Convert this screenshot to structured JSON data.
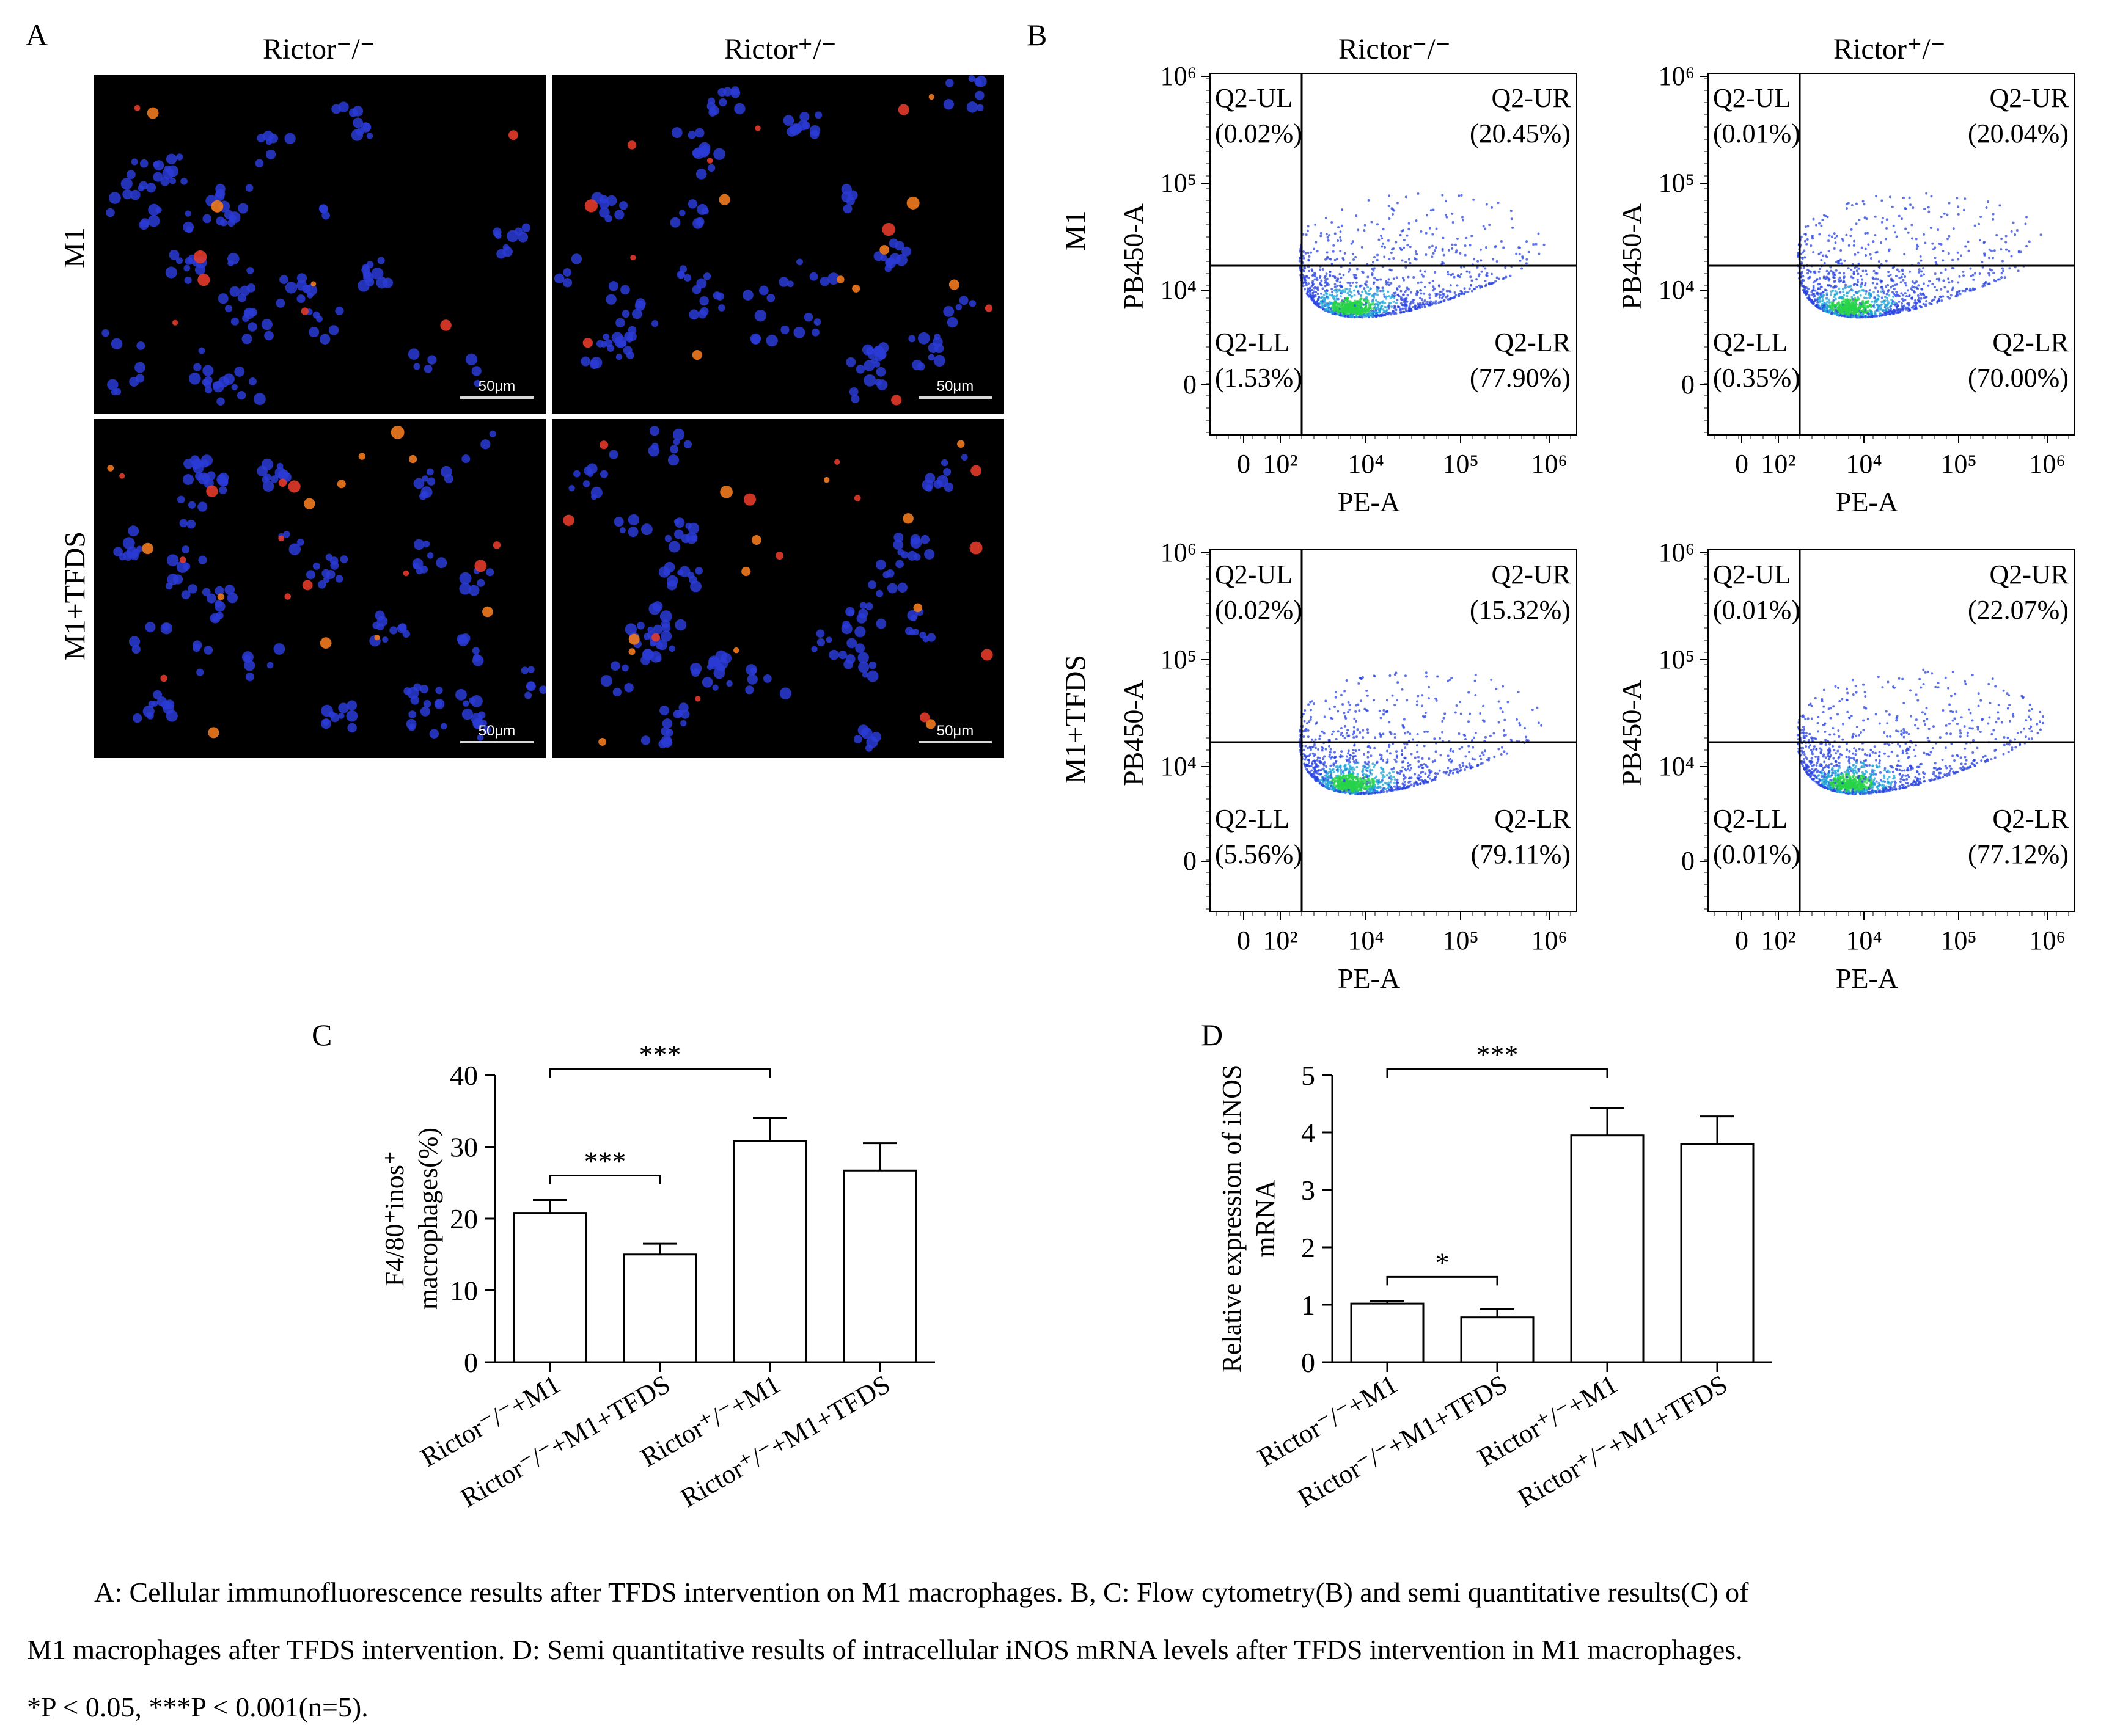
{
  "panels": {
    "A": {
      "label": "A",
      "columns": [
        "Rictor⁻/⁻",
        "Rictor⁺/⁻"
      ],
      "rows": [
        "M1",
        "M1+TFDS"
      ],
      "scale_bar": "50μm"
    },
    "B": {
      "label": "B",
      "columns": [
        "Rictor⁻/⁻",
        "Rictor⁺/⁻"
      ],
      "rows": [
        "M1",
        "M1+TFDS"
      ],
      "x_label": "PE-A",
      "y_label": "PB450-A",
      "x_ticks": [
        "0",
        "10²",
        "10⁴",
        "10⁵",
        "10⁶"
      ],
      "y_ticks": [
        "10⁶",
        "10⁵",
        "10⁴",
        "0"
      ],
      "plots": [
        {
          "UL": "(0.02%)",
          "UR": "(20.45%)",
          "LL": "(1.53%)",
          "LR": "(77.90%)"
        },
        {
          "UL": "(0.01%)",
          "UR": "(20.04%)",
          "LL": "(0.35%)",
          "LR": "(70.00%)"
        },
        {
          "UL": "(0.02%)",
          "UR": "(15.32%)",
          "LL": "(5.56%)",
          "LR": "(79.11%)"
        },
        {
          "UL": "(0.01%)",
          "UR": "(22.07%)",
          "LL": "(0.01%)",
          "LR": "(77.12%)"
        }
      ],
      "quadrant_names": {
        "UL": "Q2-UL",
        "UR": "Q2-UR",
        "LL": "Q2-LL",
        "LR": "Q2-LR"
      }
    }
  },
  "chart_data": [
    {
      "panel": "C",
      "type": "bar",
      "categories": [
        "Rictor⁻/⁻+M1",
        "Rictor⁻/⁻+M1+TFDS",
        "Rictor⁺/⁻+M1",
        "Rictor⁺/⁻+M1+TFDS"
      ],
      "values": [
        20.8,
        15.0,
        30.8,
        26.7
      ],
      "errors": [
        1.8,
        1.5,
        3.2,
        3.8
      ],
      "ylabel_line1": "F4/80⁺inos⁺",
      "ylabel_line2": "macrophages(%)",
      "ylim": [
        0,
        40
      ],
      "yticks": [
        "0",
        "10",
        "20",
        "30",
        "40"
      ],
      "significance": [
        {
          "from": 0,
          "to": 1,
          "label": "***"
        },
        {
          "from": 0,
          "to": 2,
          "label": "***"
        }
      ]
    },
    {
      "panel": "D",
      "type": "bar",
      "categories": [
        "Rictor⁻/⁻+M1",
        "Rictor⁻/⁻+M1+TFDS",
        "Rictor⁺/⁻+M1",
        "Rictor⁺/⁻+M1+TFDS"
      ],
      "values": [
        1.02,
        0.78,
        3.95,
        3.8
      ],
      "errors": [
        0.04,
        0.14,
        0.48,
        0.48
      ],
      "ylabel_line1": "Relative expression of iNOS",
      "ylabel_line2": "mRNA",
      "ylim": [
        0,
        5
      ],
      "yticks": [
        "0",
        "1",
        "2",
        "3",
        "4",
        "5"
      ],
      "significance": [
        {
          "from": 0,
          "to": 1,
          "label": "*"
        },
        {
          "from": 0,
          "to": 2,
          "label": "***"
        }
      ]
    }
  ],
  "caption": {
    "line1": "A: Cellular immunofluorescence results after TFDS intervention on M1 macrophages. B, C: Flow cytometry(B) and semi quantitative results(C) of",
    "line2": "M1 macrophages after TFDS intervention. D: Semi quantitative results of intracellular iNOS mRNA levels after TFDS intervention in M1 macrophages.",
    "line3": "*P < 0.05, ***P < 0.001(n=5)."
  },
  "colors": {
    "nuclei": "#2a3bd6",
    "marker": "#f07a1e",
    "bar_fill": "#ffffff",
    "axis": "#000000"
  }
}
